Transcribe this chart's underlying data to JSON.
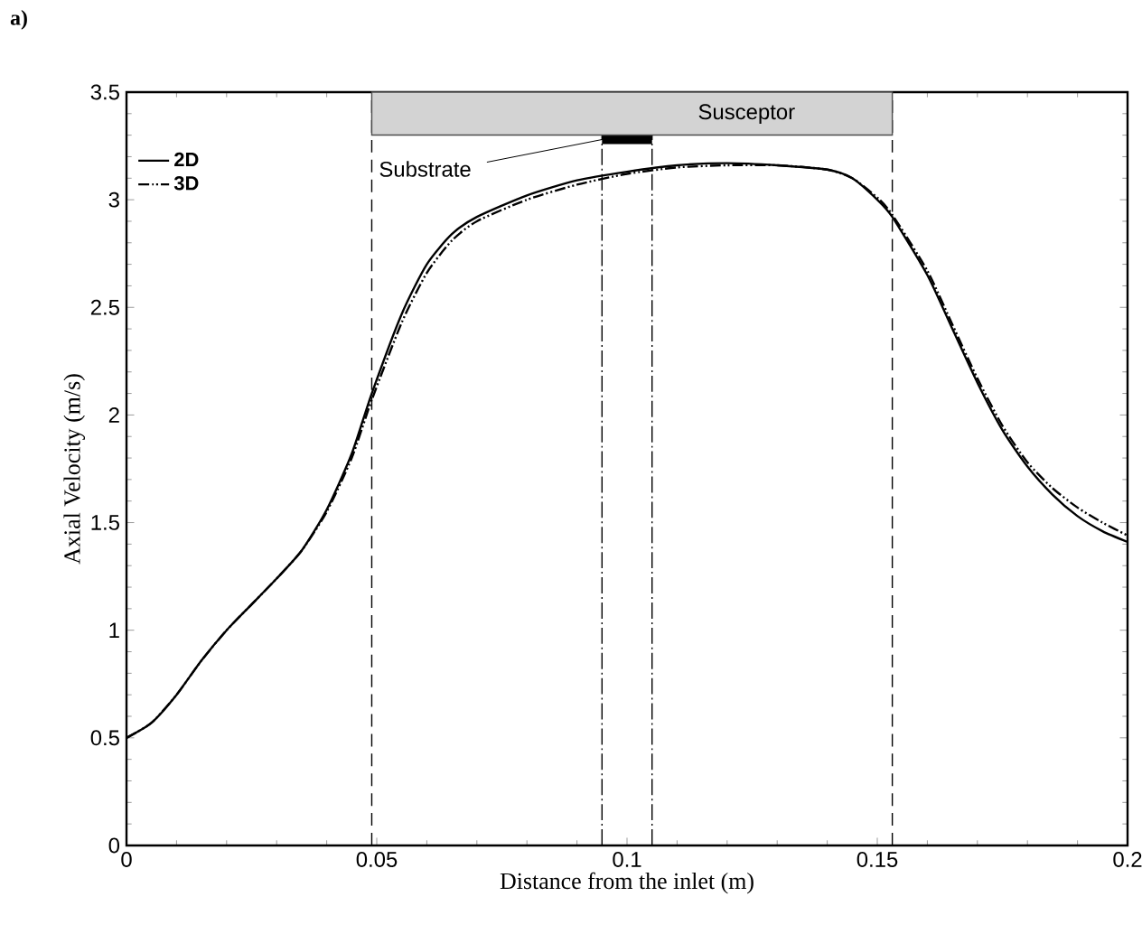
{
  "chart_data": {
    "type": "line",
    "title": "a)",
    "xlabel": "Distance from the inlet (m)",
    "ylabel": "Axial Velocity (m/s)",
    "xlim": [
      0,
      0.2
    ],
    "ylim": [
      0,
      3.5
    ],
    "xticks": [
      0,
      0.05,
      0.1,
      0.15,
      0.2
    ],
    "yticks": [
      0,
      0.5,
      1,
      1.5,
      2,
      2.5,
      3,
      3.5
    ],
    "legend": "top left",
    "grid": false,
    "marker": "none",
    "series": [
      {
        "name": "2D",
        "color": "#000000",
        "line_style": "solid",
        "x": [
          0,
          0.005,
          0.01,
          0.015,
          0.02,
          0.025,
          0.03,
          0.035,
          0.04,
          0.045,
          0.049,
          0.055,
          0.06,
          0.065,
          0.07,
          0.08,
          0.09,
          0.1,
          0.11,
          0.12,
          0.13,
          0.14,
          0.145,
          0.15,
          0.153,
          0.16,
          0.165,
          0.17,
          0.175,
          0.18,
          0.185,
          0.19,
          0.195,
          0.2
        ],
        "values": [
          0.5,
          0.57,
          0.7,
          0.86,
          1.0,
          1.12,
          1.24,
          1.37,
          1.56,
          1.82,
          2.1,
          2.47,
          2.7,
          2.84,
          2.92,
          3.02,
          3.09,
          3.13,
          3.16,
          3.17,
          3.16,
          3.14,
          3.1,
          3.0,
          2.92,
          2.65,
          2.4,
          2.15,
          1.93,
          1.76,
          1.63,
          1.53,
          1.46,
          1.41
        ]
      },
      {
        "name": "3D",
        "color": "#000000",
        "line_style": "dashed",
        "x": [
          0,
          0.005,
          0.01,
          0.015,
          0.02,
          0.025,
          0.03,
          0.035,
          0.04,
          0.045,
          0.049,
          0.055,
          0.06,
          0.065,
          0.07,
          0.08,
          0.09,
          0.1,
          0.11,
          0.12,
          0.13,
          0.14,
          0.145,
          0.15,
          0.153,
          0.16,
          0.165,
          0.17,
          0.175,
          0.18,
          0.185,
          0.19,
          0.195,
          0.2
        ],
        "values": [
          0.5,
          0.57,
          0.7,
          0.86,
          1.0,
          1.12,
          1.24,
          1.37,
          1.55,
          1.8,
          2.07,
          2.43,
          2.66,
          2.81,
          2.9,
          3.0,
          3.07,
          3.12,
          3.15,
          3.16,
          3.16,
          3.14,
          3.1,
          3.01,
          2.93,
          2.67,
          2.42,
          2.17,
          1.95,
          1.78,
          1.66,
          1.57,
          1.5,
          1.44
        ]
      }
    ],
    "ref_lines": [
      {
        "axis": "x",
        "value": 0.049,
        "line_style": "dashed"
      },
      {
        "axis": "x",
        "value": 0.153,
        "line_style": "dashed"
      },
      {
        "axis": "x",
        "value": 0.095,
        "line_style": "dotted"
      },
      {
        "axis": "x",
        "value": 0.105,
        "line_style": "dotted"
      }
    ],
    "bands": [
      {
        "axis": "x",
        "from": 0.049,
        "to": 0.153,
        "label": "Susceptor",
        "color": "#d3d3d3"
      },
      {
        "axis": "x",
        "from": 0.095,
        "to": 0.105,
        "label": "Substrate",
        "color": "#000000"
      }
    ]
  }
}
